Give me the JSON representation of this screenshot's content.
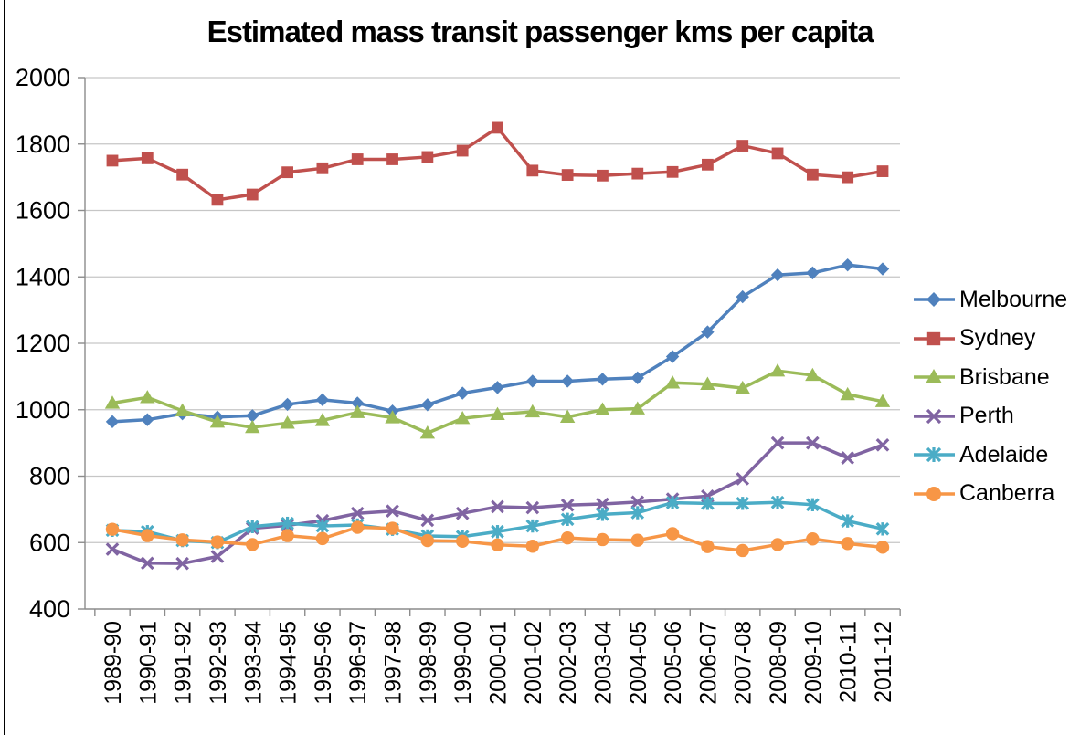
{
  "chart_data": {
    "type": "line",
    "title": "Estimated mass transit passenger kms per capita",
    "xlabel": "",
    "ylabel": "",
    "ylim": [
      400,
      2000
    ],
    "ytick_step": 200,
    "yticks": [
      "2000",
      "1800",
      "1600",
      "1400",
      "1200",
      "1000",
      "800",
      "600",
      "400"
    ],
    "grid": "horizontal",
    "legend_position": "right",
    "categories": [
      "1989-90",
      "1990-91",
      "1991-92",
      "1992-93",
      "1993-94",
      "1994-95",
      "1995-96",
      "1996-97",
      "1997-98",
      "1998-99",
      "1999-00",
      "2000-01",
      "2001-02",
      "2002-03",
      "2003-04",
      "2004-05",
      "2005-06",
      "2006-07",
      "2007-08",
      "2008-09",
      "2009-10",
      "2010-11",
      "2011-12"
    ],
    "series": [
      {
        "name": "Melbourne",
        "color": "#4F81BD",
        "marker": "diamond",
        "values": [
          964,
          970,
          988,
          978,
          982,
          1016,
          1030,
          1020,
          996,
          1015,
          1050,
          1067,
          1086,
          1086,
          1092,
          1096,
          1160,
          1234,
          1340,
          1406,
          1412,
          1436,
          1424
        ]
      },
      {
        "name": "Sydney",
        "color": "#C0504D",
        "marker": "square",
        "values": [
          1750,
          1757,
          1708,
          1632,
          1648,
          1715,
          1727,
          1754,
          1754,
          1761,
          1780,
          1849,
          1720,
          1707,
          1705,
          1711,
          1716,
          1738,
          1795,
          1772,
          1708,
          1700,
          1718
        ]
      },
      {
        "name": "Brisbane",
        "color": "#9BBB59",
        "marker": "triangle",
        "values": [
          1020,
          1037,
          997,
          963,
          947,
          960,
          968,
          992,
          976,
          930,
          974,
          986,
          994,
          978,
          1000,
          1003,
          1081,
          1077,
          1065,
          1117,
          1104,
          1046,
          1025
        ]
      },
      {
        "name": "Perth",
        "color": "#8064A2",
        "marker": "x",
        "values": [
          580,
          538,
          537,
          558,
          643,
          652,
          666,
          688,
          695,
          667,
          688,
          708,
          705,
          713,
          716,
          722,
          731,
          740,
          792,
          900,
          900,
          855,
          894
        ]
      },
      {
        "name": "Adelaide",
        "color": "#4BACC6",
        "marker": "star",
        "values": [
          637,
          633,
          606,
          600,
          648,
          658,
          650,
          653,
          640,
          620,
          618,
          633,
          650,
          670,
          685,
          690,
          720,
          718,
          718,
          721,
          714,
          665,
          641
        ]
      },
      {
        "name": "Canberra",
        "color": "#F79646",
        "marker": "circle",
        "values": [
          640,
          621,
          608,
          602,
          594,
          621,
          612,
          646,
          643,
          606,
          604,
          593,
          589,
          614,
          609,
          607,
          627,
          588,
          576,
          594,
          611,
          597,
          586
        ]
      }
    ],
    "style": {
      "gridline_color": "#C6C6C6",
      "axis_color": "#8C8C8C",
      "text_color": "#000000",
      "line_width": 3.5
    }
  }
}
